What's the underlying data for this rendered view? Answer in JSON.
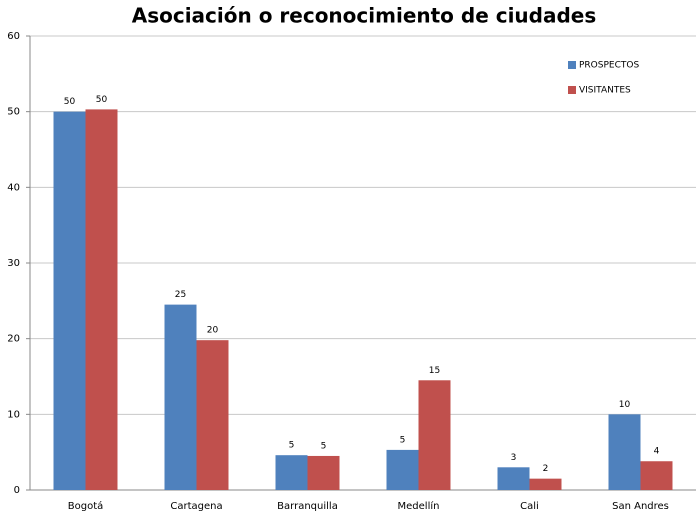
{
  "chart_data": {
    "type": "bar",
    "title": "Asociación o reconocimiento de ciudades",
    "categories": [
      "Bogotá",
      "Cartagena",
      "Barranquilla",
      "Medellín",
      "Cali",
      "San Andres"
    ],
    "series": [
      {
        "name": "PROSPECTOS",
        "color": "#4f81bd",
        "values": [
          50,
          24.5,
          4.6,
          5.3,
          3,
          10
        ],
        "value_labels": [
          "50",
          "25",
          "5",
          "5",
          "3",
          "10"
        ]
      },
      {
        "name": "VISITANTES",
        "color": "#c0504d",
        "values": [
          50.3,
          19.8,
          4.5,
          14.5,
          1.5,
          3.8
        ],
        "value_labels": [
          "50",
          "20",
          "5",
          "15",
          "2",
          "4"
        ]
      }
    ],
    "ylim": [
      0,
      60
    ],
    "yticks": [
      0,
      10,
      20,
      30,
      40,
      50,
      60
    ],
    "grid": true,
    "legend": "top-right"
  }
}
